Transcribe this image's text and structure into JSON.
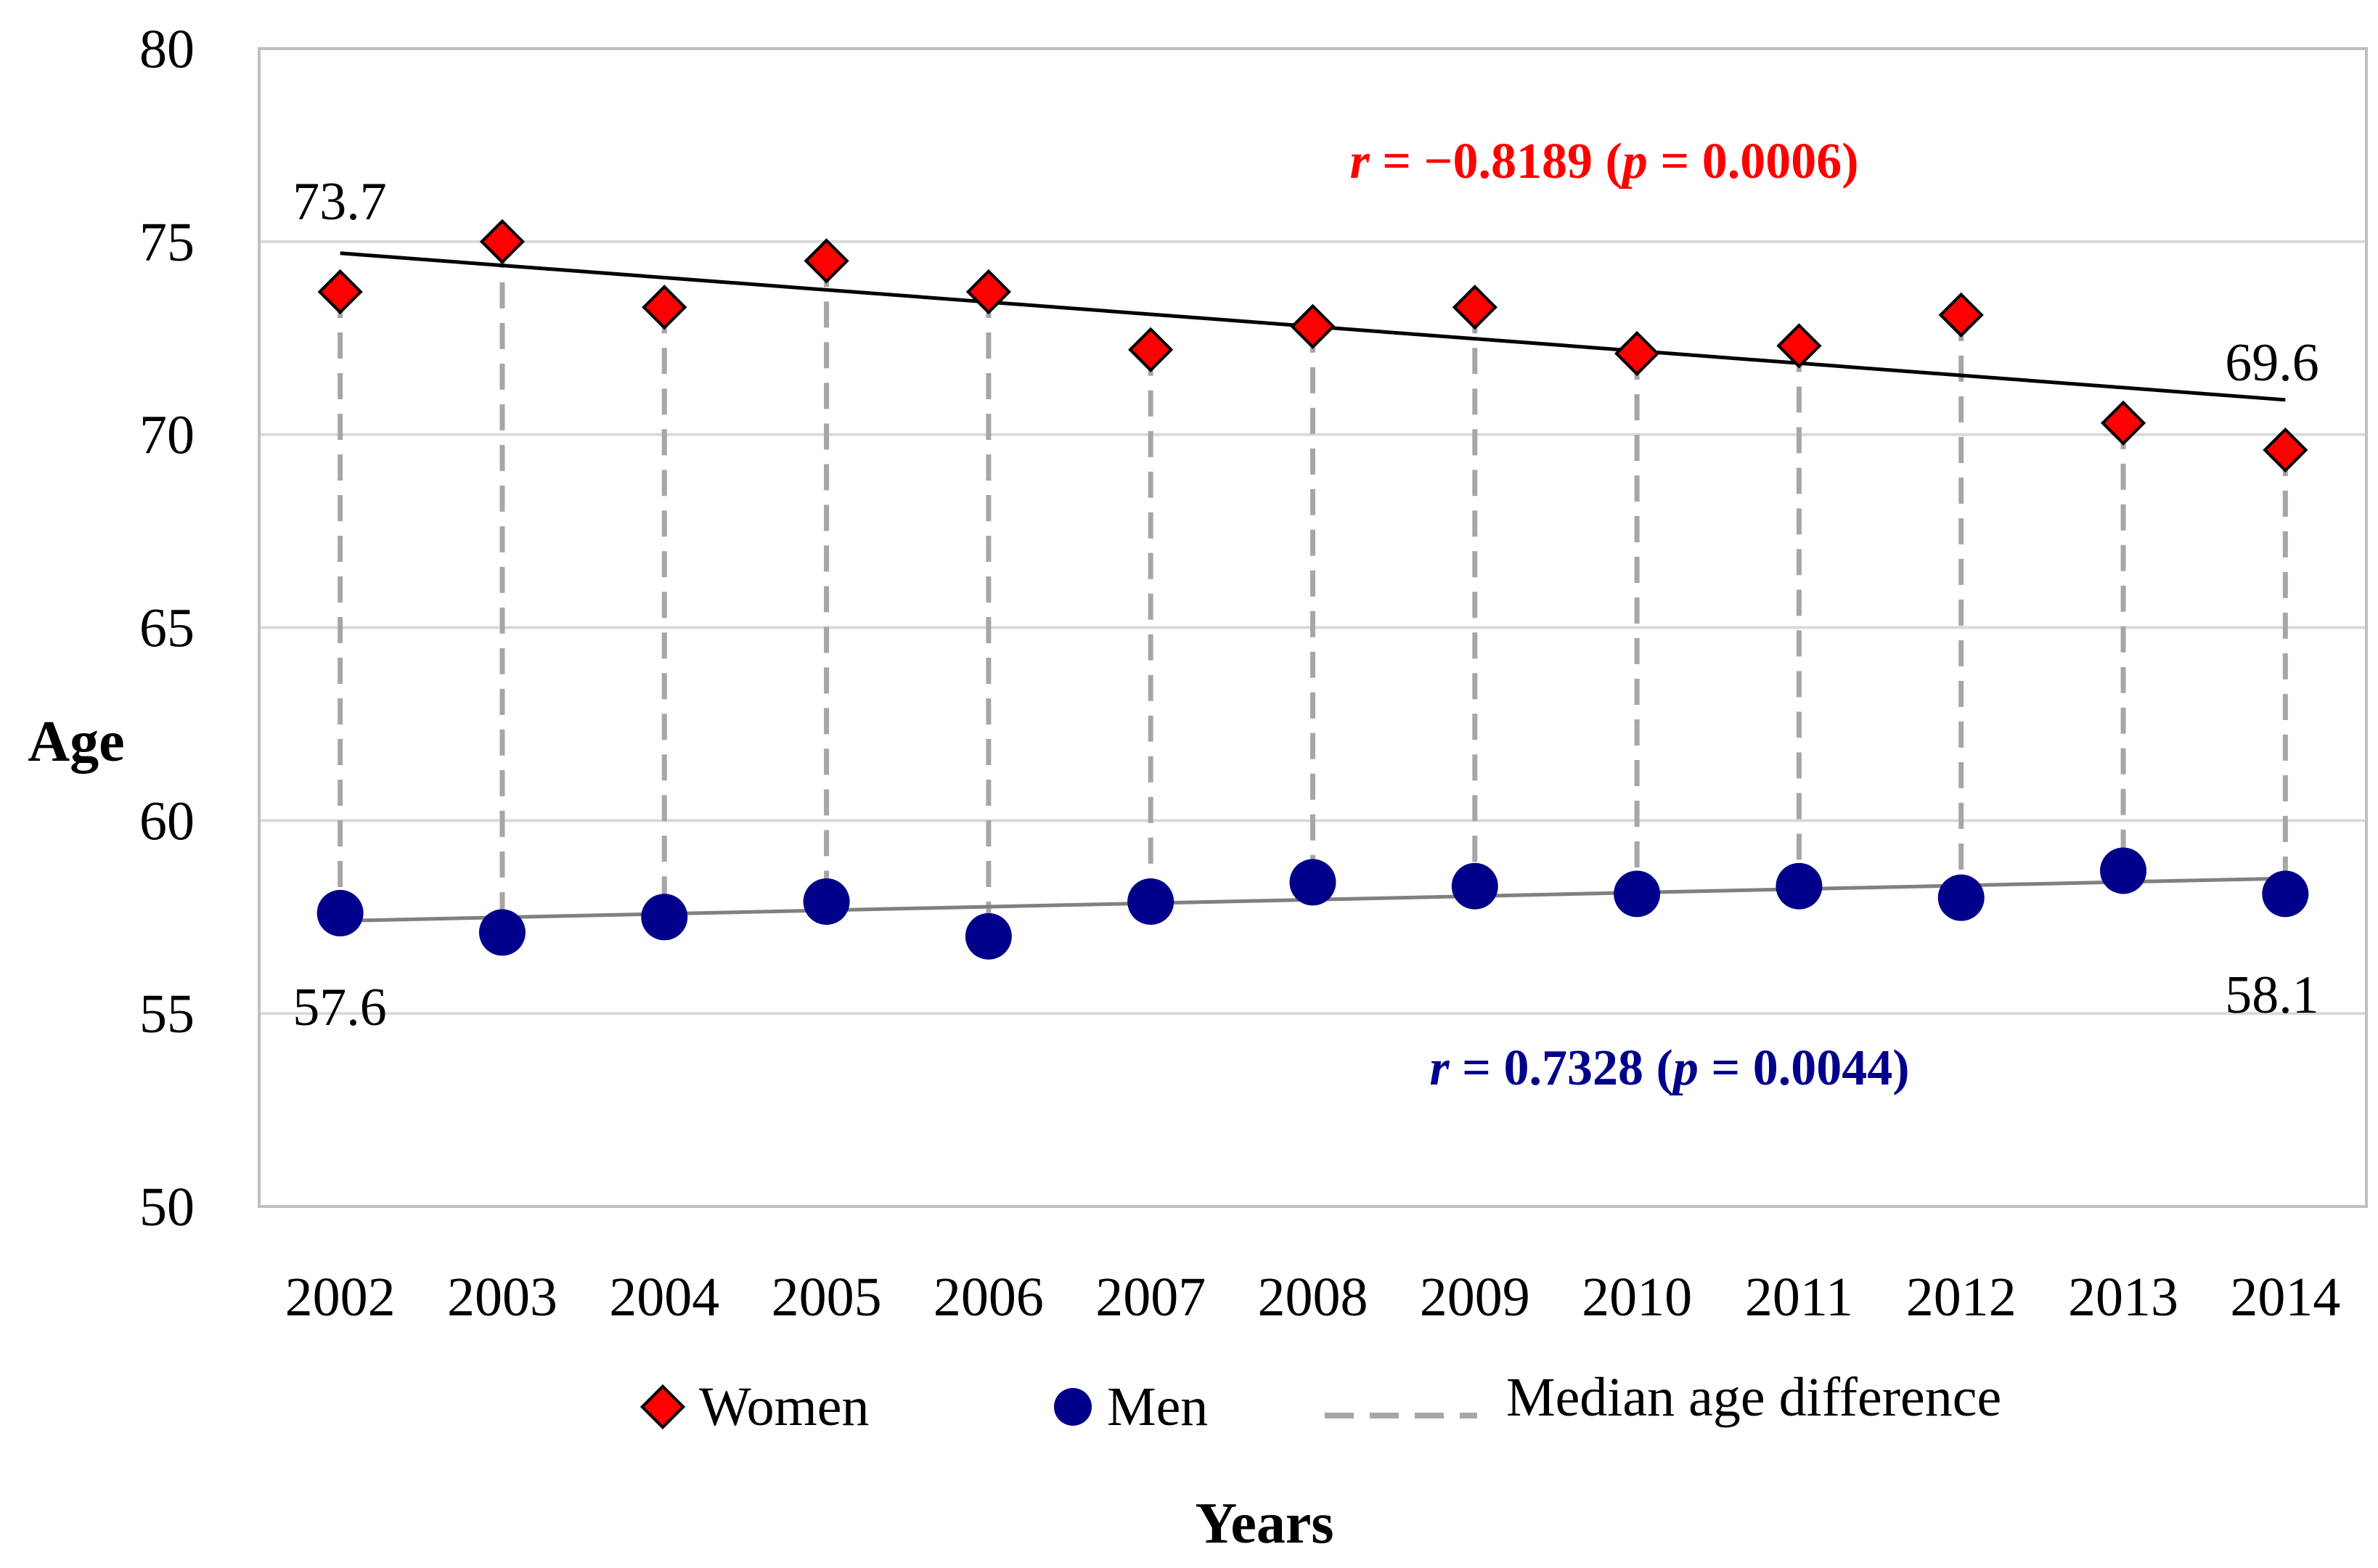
{
  "chart_data": {
    "type": "scatter",
    "xlabel": "Years",
    "ylabel": "Age",
    "ylim": [
      50,
      80
    ],
    "yticks": [
      50,
      55,
      60,
      65,
      70,
      75,
      80
    ],
    "x": [
      2002,
      2003,
      2004,
      2005,
      2006,
      2007,
      2008,
      2009,
      2010,
      2011,
      2012,
      2013,
      2014
    ],
    "grid": true,
    "legend_position": "bottom",
    "series": [
      {
        "name": "Women",
        "marker": "diamond",
        "color": "#ff0000",
        "values": [
          73.7,
          75.0,
          73.3,
          74.5,
          73.7,
          72.2,
          72.8,
          73.3,
          72.1,
          72.3,
          73.1,
          70.3,
          69.6
        ]
      },
      {
        "name": "Men",
        "marker": "circle",
        "color": "#00008b",
        "values": [
          57.6,
          57.1,
          57.5,
          57.9,
          57.0,
          57.9,
          58.4,
          58.3,
          58.1,
          58.3,
          58.0,
          58.7,
          58.1
        ]
      }
    ],
    "trendlines": [
      {
        "series": "Women",
        "color": "#000000",
        "start": 74.7,
        "end": 70.9
      },
      {
        "series": "Men",
        "color": "#808080",
        "start": 57.4,
        "end": 58.5
      }
    ],
    "difference_legend": "Median age difference",
    "point_labels": {
      "women_first": "73.7",
      "women_last": "69.6",
      "men_first": "57.6",
      "men_last": "58.1"
    },
    "annotations": {
      "women": {
        "r_symbol": "r",
        "r_rest": " = −0.8189 (",
        "p_symbol": "p",
        "p_rest": " = 0.0006)",
        "color": "#ff0000"
      },
      "men": {
        "r_symbol": "r",
        "r_rest": " = 0.7328 (",
        "p_symbol": "p",
        "p_rest": " = 0.0044)",
        "color": "#00008b"
      }
    },
    "colors": {
      "grid": "#d9d9d9",
      "axis": "#bfbfbf",
      "dash": "#a6a6a6"
    }
  }
}
